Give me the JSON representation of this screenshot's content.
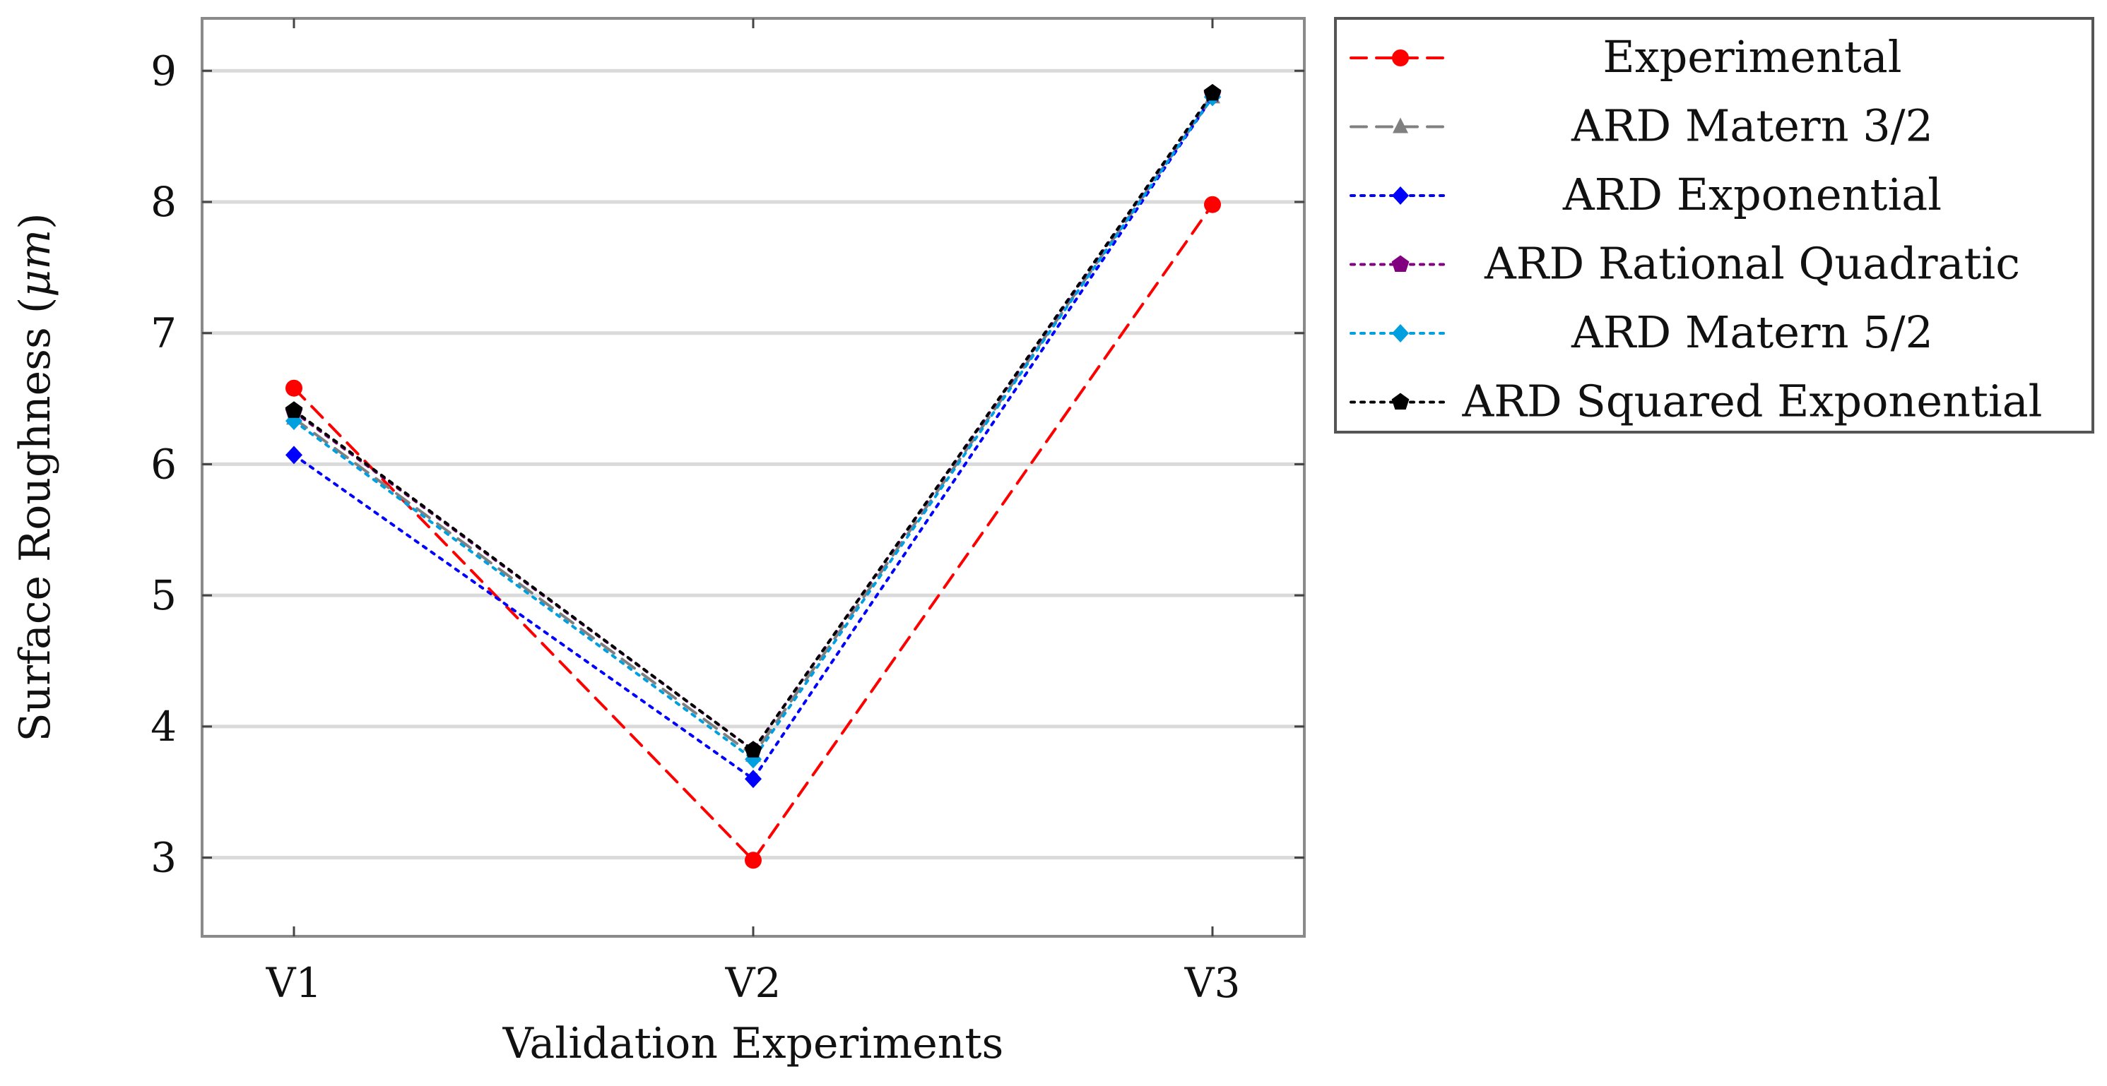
{
  "chart_data": {
    "type": "line",
    "title": "",
    "xlabel": "Validation Experiments",
    "ylabel_text": "Surface Roughness (",
    "ylabel_unit": "μm",
    "ylabel_close": ")",
    "categories": [
      "V1",
      "V2",
      "V3"
    ],
    "ylim": [
      2.4,
      9.4
    ],
    "yticks": [
      3,
      4,
      5,
      6,
      7,
      8,
      9
    ],
    "ytick_labels": [
      "3",
      "4",
      "5",
      "6",
      "7",
      "8",
      "9"
    ],
    "grid": "horizontal",
    "legend_position": "outside-right",
    "series": [
      {
        "name": "Experimental",
        "values": [
          6.58,
          2.98,
          7.98
        ],
        "color": "#ff0000",
        "dash": "dashed",
        "marker": "circle"
      },
      {
        "name": "ARD Matern 3/2",
        "values": [
          6.35,
          3.78,
          8.8
        ],
        "color": "#808080",
        "dash": "dashed",
        "marker": "triangle"
      },
      {
        "name": "ARD Exponential",
        "values": [
          6.07,
          3.6,
          8.8
        ],
        "color": "#0000ff",
        "dash": "dotted",
        "marker": "diamond"
      },
      {
        "name": "ARD Rational Quadratic",
        "values": [
          6.4,
          3.82,
          8.82
        ],
        "color": "#800080",
        "dash": "dotted",
        "marker": "pentagon"
      },
      {
        "name": "ARD Matern 5/2",
        "values": [
          6.33,
          3.75,
          8.8
        ],
        "color": "#00a0e0",
        "dash": "dotted",
        "marker": "diamond"
      },
      {
        "name": "ARD Squared Exponential",
        "values": [
          6.41,
          3.82,
          8.83
        ],
        "color": "#000000",
        "dash": "dotted",
        "marker": "pentagon"
      }
    ]
  }
}
